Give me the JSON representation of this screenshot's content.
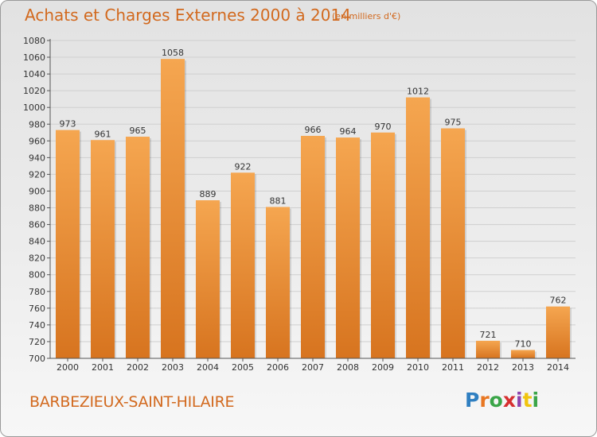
{
  "header": {
    "title": "Achats et Charges Externes 2000 à 2014",
    "unit_note": "(en milliers d'€)"
  },
  "footer": {
    "commune": "BARBEZIEUX-SAINT-HILAIRE",
    "brand": "Proxiti",
    "brand_colors": [
      "#2f7fc1",
      "#e87722",
      "#3aa548",
      "#d62f2f",
      "#8e44ad",
      "#f1c40f",
      "#3aa548"
    ]
  },
  "colors": {
    "bar_light": "#f5a650",
    "bar_dark": "#d7741f",
    "accent": "#d2691e",
    "grid": "#cfcfcf"
  },
  "chart_data": {
    "type": "bar",
    "categories": [
      "2000",
      "2001",
      "2002",
      "2003",
      "2004",
      "2005",
      "2006",
      "2007",
      "2008",
      "2009",
      "2010",
      "2011",
      "2012",
      "2013",
      "2014"
    ],
    "values": [
      973,
      961,
      965,
      1058,
      889,
      922,
      881,
      966,
      964,
      970,
      1012,
      975,
      721,
      710,
      762
    ],
    "title": "Achats et Charges Externes 2000 à 2014",
    "xlabel": "",
    "ylabel": "",
    "ylim": [
      700,
      1080
    ],
    "yticks": [
      700,
      720,
      740,
      760,
      780,
      800,
      820,
      840,
      860,
      880,
      900,
      920,
      940,
      960,
      980,
      1000,
      1020,
      1040,
      1060,
      1080
    ],
    "grid": true,
    "legend": "none"
  }
}
